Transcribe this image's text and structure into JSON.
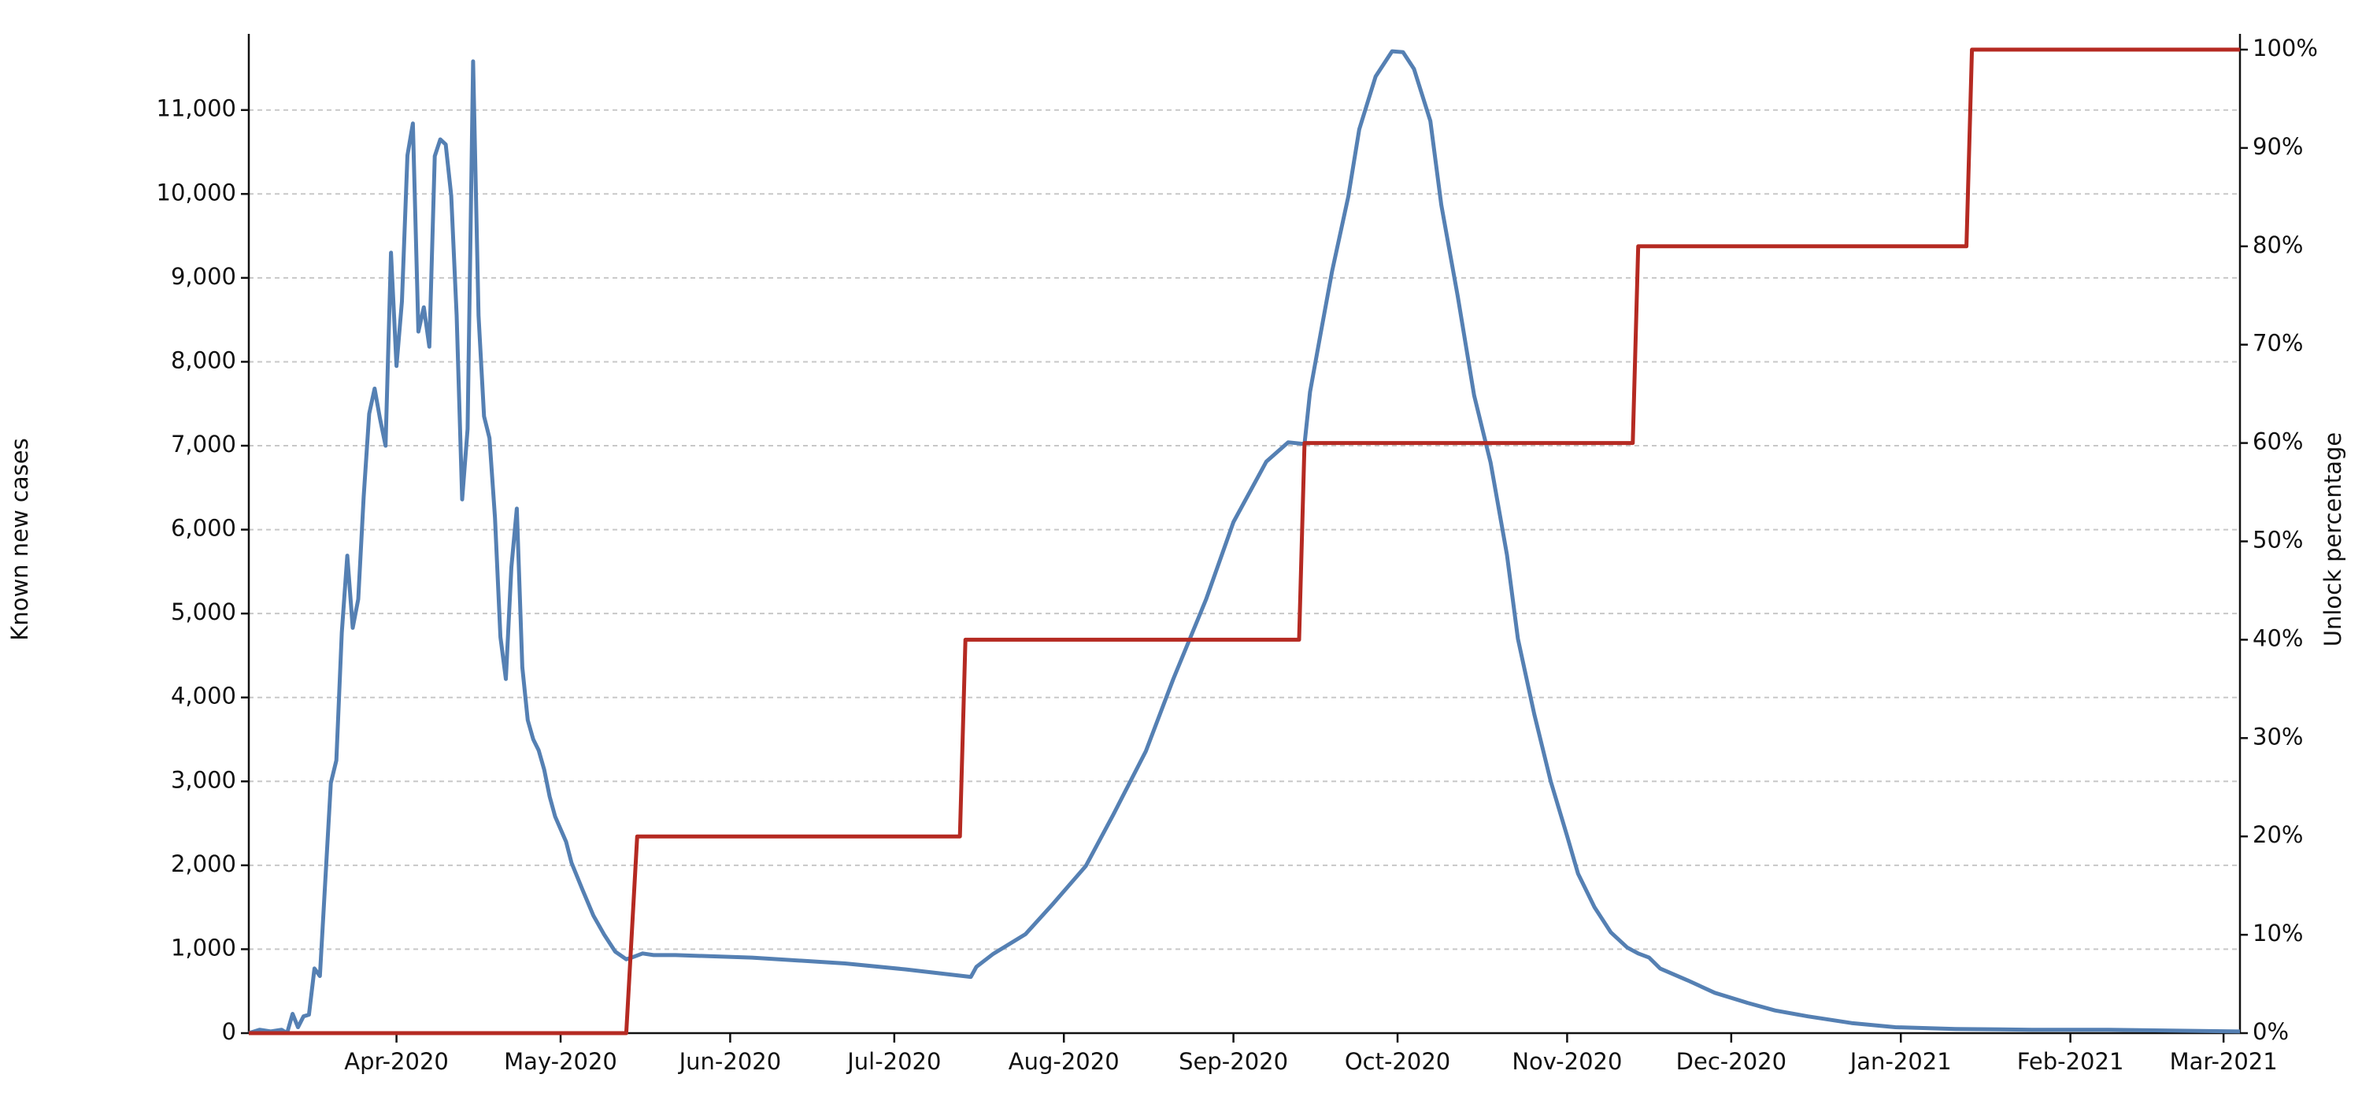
{
  "chart_data": {
    "type": "line",
    "ylabel": "Known new cases",
    "y2label": "Unlock percentage",
    "xlim": [
      4,
      368
    ],
    "xticks": [
      {
        "value": 31,
        "label": "Apr-2020"
      },
      {
        "value": 61,
        "label": "May-2020"
      },
      {
        "value": 92,
        "label": "Jun-2020"
      },
      {
        "value": 122,
        "label": "Jul-2020"
      },
      {
        "value": 153,
        "label": "Aug-2020"
      },
      {
        "value": 184,
        "label": "Sep-2020"
      },
      {
        "value": 214,
        "label": "Oct-2020"
      },
      {
        "value": 245,
        "label": "Nov-2020"
      },
      {
        "value": 275,
        "label": "Dec-2020"
      },
      {
        "value": 306,
        "label": "Jan-2021"
      },
      {
        "value": 337,
        "label": "Feb-2021"
      },
      {
        "value": 365,
        "label": "Mar-2021"
      }
    ],
    "ylim": [
      0,
      11720
    ],
    "yticks": [
      0,
      {
        "value": 1000,
        "label": "1,000"
      },
      {
        "value": 2000,
        "label": "2,000"
      },
      {
        "value": 3000,
        "label": "3,000"
      },
      {
        "value": 4000,
        "label": "4,000"
      },
      {
        "value": 5000,
        "label": "5,000"
      },
      {
        "value": 6000,
        "label": "6,000"
      },
      {
        "value": 7000,
        "label": "7,000"
      },
      {
        "value": 8000,
        "label": "8,000"
      },
      {
        "value": 9000,
        "label": "9,000"
      },
      {
        "value": 10000,
        "label": "10,000"
      },
      {
        "value": 11000,
        "label": "11,000"
      }
    ],
    "y2lim": [
      0,
      100
    ],
    "y2ticks": [
      {
        "value": 0,
        "label": "0%"
      },
      {
        "value": 10,
        "label": "10%"
      },
      {
        "value": 20,
        "label": "20%"
      },
      {
        "value": 30,
        "label": "30%"
      },
      {
        "value": 40,
        "label": "40%"
      },
      {
        "value": 50,
        "label": "50%"
      },
      {
        "value": 60,
        "label": "60%"
      },
      {
        "value": 70,
        "label": "70%"
      },
      {
        "value": 80,
        "label": "80%"
      },
      {
        "value": 90,
        "label": "90%"
      },
      {
        "value": 100,
        "label": "100%"
      }
    ],
    "grid": true,
    "series": [
      {
        "color": "#5580b3",
        "x": [
          4,
          6,
          8,
          10,
          11,
          12,
          13,
          14,
          15,
          16,
          17,
          19,
          20,
          21,
          22,
          23,
          24,
          25,
          26,
          27,
          28,
          29,
          30,
          31,
          32,
          33,
          34,
          35,
          36,
          37,
          38,
          39,
          40,
          41,
          42,
          43,
          44,
          45,
          46,
          47,
          48,
          49,
          50,
          51,
          52,
          53,
          54,
          55,
          56,
          57,
          58,
          59,
          60,
          62,
          63,
          65,
          67,
          69,
          71,
          73,
          74,
          76,
          78,
          80,
          82,
          96,
          113,
          124,
          136,
          137,
          140,
          146,
          151,
          157,
          162,
          168,
          173,
          179,
          184,
          190,
          194,
          197,
          198,
          200,
          202,
          205,
          207,
          210,
          213,
          215,
          217,
          220,
          222,
          225,
          228,
          231,
          234,
          236,
          239,
          242,
          245,
          247,
          250,
          253,
          256,
          258,
          260,
          262,
          267,
          272,
          278,
          283,
          289,
          297,
          305,
          316,
          330,
          344,
          368
        ],
        "values": [
          0,
          40,
          20,
          40,
          0,
          230,
          70,
          200,
          220,
          770,
          680,
          2980,
          3250,
          4770,
          5690,
          4830,
          5170,
          6390,
          7380,
          7680,
          7320,
          7000,
          9300,
          7950,
          8720,
          10460,
          10840,
          8360,
          8650,
          8180,
          10450,
          10650,
          10590,
          9980,
          8550,
          6360,
          7200,
          11580,
          8550,
          7350,
          7090,
          6140,
          4720,
          4220,
          5550,
          6250,
          4360,
          3730,
          3500,
          3370,
          3140,
          2820,
          2580,
          2280,
          2030,
          1710,
          1400,
          1170,
          970,
          880,
          900,
          950,
          930,
          930,
          930,
          900,
          830,
          760,
          670,
          790,
          940,
          1180,
          1540,
          1990,
          2600,
          3360,
          4220,
          5170,
          6090,
          6810,
          7040,
          7020,
          7640,
          8360,
          9070,
          9970,
          10770,
          11400,
          11700,
          11690,
          11490,
          10870,
          9870,
          8780,
          7600,
          6800,
          5700,
          4700,
          3800,
          3000,
          2350,
          1900,
          1500,
          1200,
          1020,
          950,
          900,
          770,
          630,
          480,
          360,
          270,
          200,
          120,
          70,
          50,
          40,
          40,
          20
        ]
      },
      {
        "color": "#b52a22",
        "axis": "y2",
        "x": [
          4,
          73,
          75,
          134,
          135,
          196,
          197,
          257,
          258,
          318,
          319,
          368
        ],
        "values": [
          0,
          0,
          20,
          20,
          40,
          40,
          60,
          60,
          80,
          80,
          100,
          100
        ]
      }
    ]
  }
}
